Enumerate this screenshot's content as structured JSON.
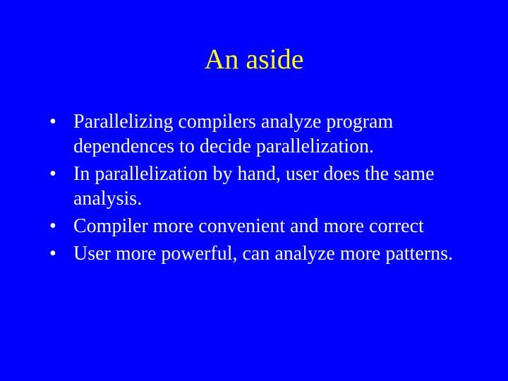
{
  "slide": {
    "title": "An aside",
    "title_color": "#ffff00",
    "body_color": "#ffffff",
    "background_color": "#0000ff",
    "title_fontsize": 40,
    "body_fontsize": 28,
    "font_family": "Times New Roman",
    "bullets": [
      "Parallelizing compilers analyze program dependences to decide parallelization.",
      "In parallelization by hand, user does the same analysis.",
      "Compiler more convenient and more correct",
      "User more powerful, can analyze more patterns."
    ]
  }
}
